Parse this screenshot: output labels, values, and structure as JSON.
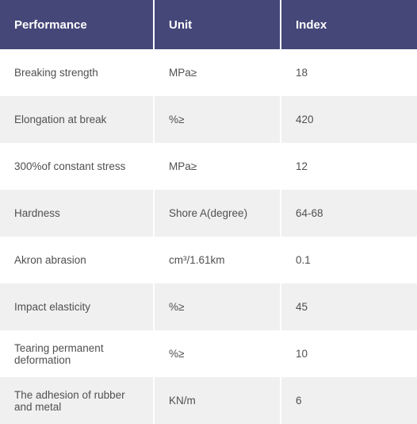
{
  "table": {
    "header_bg": "#454779",
    "header_text_color": "#ffffff",
    "header_fontsize": 15,
    "row_bg_even": "#ffffff",
    "row_bg_odd": "#f0f0f0",
    "body_text_color": "#505050",
    "divider_color": "#ffffff",
    "columns": [
      {
        "label": "Performance"
      },
      {
        "label": "Unit"
      },
      {
        "label": "Index"
      }
    ],
    "rows": [
      {
        "c0": "Breaking strength",
        "c1": "MPa≥",
        "c2": "18"
      },
      {
        "c0": "Elongation at break",
        "c1": "%≥",
        "c2": "420"
      },
      {
        "c0": "300%of constant stress",
        "c1": "MPa≥",
        "c2": "12"
      },
      {
        "c0": "Hardness",
        "c1": "Shore A(degree)",
        "c2": "64-68"
      },
      {
        "c0": "Akron abrasion",
        "c1": "cm³/1.61km",
        "c2": "0.1"
      },
      {
        "c0": "Impact elasticity",
        "c1": "%≥",
        "c2": "45"
      },
      {
        "c0": "Tearing permanent deformation",
        "c1": "%≥",
        "c2": "10"
      },
      {
        "c0": "The adhesion of rubber and metal",
        "c1": "KN/m",
        "c2": "6"
      }
    ]
  }
}
